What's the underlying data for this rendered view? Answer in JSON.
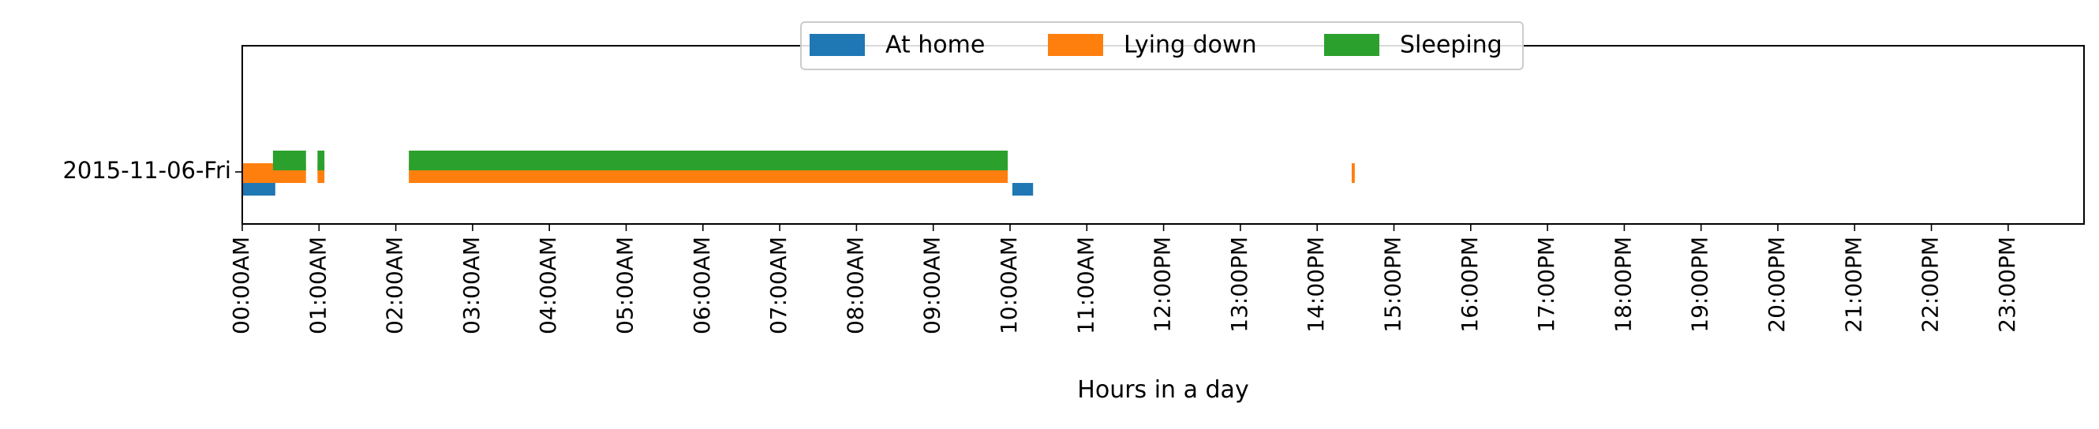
{
  "chart_data": {
    "type": "bar",
    "orientation": "horizontal",
    "subtype": "timeline",
    "title": "",
    "xlabel": "Hours in a day",
    "ylabel": "",
    "xlim": [
      0,
      24
    ],
    "grid": false,
    "legend_position": "top-center",
    "categories": [
      "2015-11-06-Fri"
    ],
    "x_tick_labels": [
      "00:00AM",
      "01:00AM",
      "02:00AM",
      "03:00AM",
      "04:00AM",
      "05:00AM",
      "06:00AM",
      "07:00AM",
      "08:00AM",
      "09:00AM",
      "10:00AM",
      "11:00AM",
      "12:00PM",
      "13:00PM",
      "14:00PM",
      "15:00PM",
      "16:00PM",
      "17:00PM",
      "18:00PM",
      "19:00PM",
      "20:00PM",
      "21:00PM",
      "22:00PM",
      "23:00PM"
    ],
    "x_tick_values": [
      0,
      1,
      2,
      3,
      4,
      5,
      6,
      7,
      8,
      9,
      10,
      11,
      12,
      13,
      14,
      15,
      16,
      17,
      18,
      19,
      20,
      21,
      22,
      23
    ],
    "series": [
      {
        "name": "At home",
        "color": "#1f77b4",
        "intervals": [
          {
            "start": 0.0,
            "end": 0.43
          },
          {
            "start": 10.03,
            "end": 10.3
          }
        ]
      },
      {
        "name": "Lying down",
        "color": "#ff7f0e",
        "intervals": [
          {
            "start": 0.0,
            "end": 0.83
          },
          {
            "start": 0.98,
            "end": 1.07
          },
          {
            "start": 2.17,
            "end": 9.97
          },
          {
            "start": 14.45,
            "end": 14.49
          }
        ]
      },
      {
        "name": "Sleeping",
        "color": "#2ca02c",
        "intervals": [
          {
            "start": 0.4,
            "end": 0.83
          },
          {
            "start": 0.98,
            "end": 1.07
          },
          {
            "start": 2.17,
            "end": 9.97
          }
        ]
      }
    ]
  }
}
